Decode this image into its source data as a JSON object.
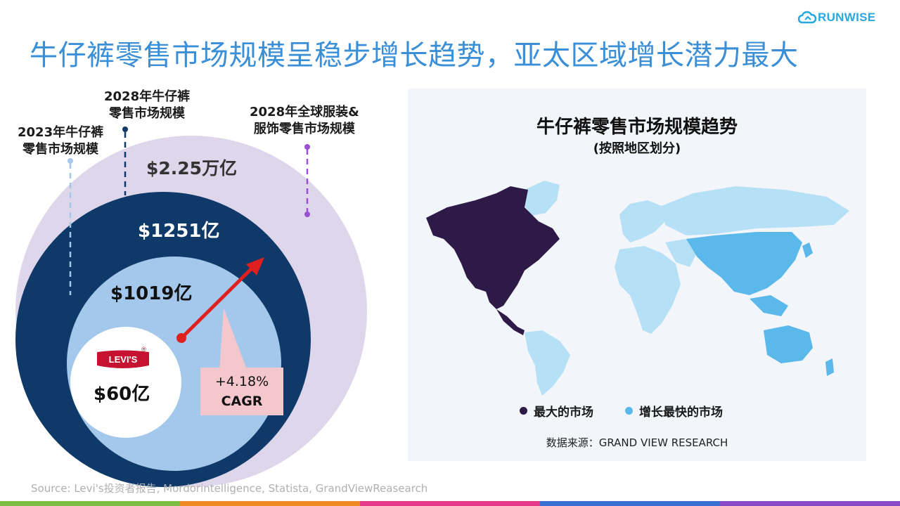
{
  "header": {
    "brand_name": "RUNWISE",
    "title": "牛仔裤零售市场规模呈稳步增长趋势，亚太区域增长潜力最大",
    "logo_icon": "cloud-icon",
    "brand_color": "#29a8e0",
    "title_color": "#3a8fd6"
  },
  "market_rings": {
    "callouts": {
      "y2023_jeans": [
        "2023年牛仔裤",
        "零售市场规模"
      ],
      "y2028_jeans": [
        "2028年牛仔裤",
        "零售市场规模"
      ],
      "y2028_global_apparel": [
        "2028年全球服装&",
        "服饰零售市场规模"
      ]
    },
    "values": {
      "y2028_global_apparel": "$2.25万亿",
      "y2028_jeans": "$1251亿",
      "y2023_jeans": "$1019亿",
      "levis": "$60亿"
    },
    "levis_brand": "LEVI'S",
    "cagr": {
      "value": "+4.18%",
      "label": "CAGR"
    },
    "colors": {
      "global_apparel": "#ded6ea",
      "jeans_2028": "#0f3968",
      "jeans_2023": "#a4c8ec",
      "levis_core": "#ffffff",
      "arrow": "#e0201f",
      "cagr_box": "#f4c7cc",
      "levis_red": "#c41230"
    }
  },
  "map_panel": {
    "title": "牛仔裤零售市场规模趋势",
    "subtitle": "(按照地区划分)",
    "legend": [
      {
        "label": "最大的市场",
        "color": "#2e1a47"
      },
      {
        "label": "增长最快的市场",
        "color": "#5bb8ea"
      }
    ],
    "source": "数据来源：GRAND VIEW RESEARCH",
    "colors": {
      "north_america": "#2e1a47",
      "asia_pacific": "#5bb8ea",
      "other_regions": "#b5e0f5"
    }
  },
  "footer": {
    "source": "Source: Levi's投资者报告, Mordorintelligence, Statista, GrandViewReasearch",
    "stripe_colors": [
      "#7cbf42",
      "#f08a24",
      "#e63a8b",
      "#3a6fd6",
      "#8a4bc8"
    ]
  }
}
